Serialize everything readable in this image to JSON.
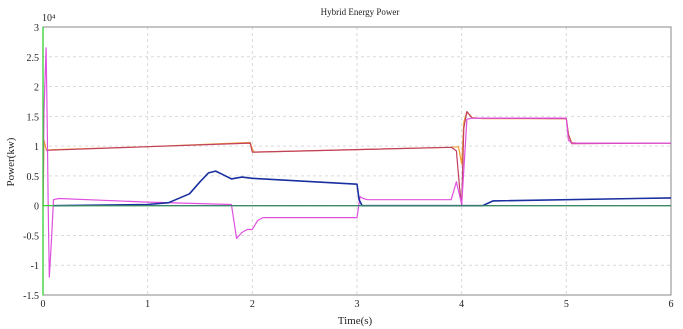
{
  "chart_data": {
    "type": "line",
    "title": "Hybrid Energy Power",
    "xlabel": "Time(s)",
    "ylabel": "Power(kw)",
    "y_multiplier": "10⁴",
    "xlim": [
      0,
      6
    ],
    "ylim": [
      -1.5,
      3
    ],
    "xticks": [
      "0",
      "1",
      "2",
      "3",
      "4",
      "5",
      "6"
    ],
    "yticks": [
      "-1.5",
      "-1",
      "-0.5",
      "0",
      "0.5",
      "1",
      "1.5",
      "2",
      "2.5",
      "3"
    ],
    "grid": true,
    "series": [
      {
        "color": "#f0a030",
        "x": [
          0,
          0.01,
          0.03,
          0.05,
          0.08,
          1.0,
          1.98,
          2.0,
          2.02,
          3.9,
          3.97,
          4.0,
          4.02,
          4.05,
          4.1,
          4.2,
          5.0,
          5.02,
          5.05,
          5.1,
          6.0
        ],
        "y": [
          0,
          1.1,
          0.95,
          0.93,
          0.94,
          0.99,
          1.06,
          0.95,
          0.9,
          0.98,
          0.99,
          0.7,
          1.4,
          1.58,
          1.48,
          1.46,
          1.46,
          1.2,
          1.06,
          1.05,
          1.05
        ]
      },
      {
        "color": "#c04060",
        "x": [
          0.03,
          1.0,
          1.98,
          2.0,
          2.02,
          3.9,
          3.95,
          3.98,
          4.0,
          4.02,
          4.05,
          4.1,
          5.0,
          5.02,
          5.05,
          6.0
        ],
        "y": [
          0.93,
          0.99,
          1.05,
          0.9,
          0.9,
          0.98,
          0.92,
          0.3,
          0.02,
          1.3,
          1.58,
          1.47,
          1.46,
          1.2,
          1.04,
          1.05
        ]
      },
      {
        "color": "#e050e0",
        "x": [
          0,
          0.01,
          0.03,
          0.04,
          0.05,
          0.06,
          0.08,
          0.1,
          0.15,
          1.0,
          1.8,
          1.85,
          1.9,
          1.95,
          2.0,
          2.05,
          2.1,
          3.0,
          3.03,
          3.06,
          3.1,
          3.9,
          3.95,
          4.0,
          4.05,
          4.1,
          5.0,
          5.02,
          5.05,
          6.0
        ],
        "y": [
          0,
          1.6,
          2.65,
          1.4,
          0.0,
          -1.2,
          -0.6,
          0.1,
          0.12,
          0.06,
          0.02,
          -0.55,
          -0.45,
          -0.4,
          -0.4,
          -0.25,
          -0.2,
          -0.2,
          0.15,
          0.12,
          0.1,
          0.1,
          0.4,
          0.02,
          1.45,
          1.47,
          1.47,
          1.1,
          1.05,
          1.05
        ]
      },
      {
        "color": "#1a2fa0",
        "x": [
          0.1,
          1.0,
          1.2,
          1.4,
          1.5,
          1.58,
          1.65,
          1.72,
          1.8,
          1.9,
          2.0,
          3.0,
          3.02,
          3.05,
          4.2,
          4.3,
          6.0
        ],
        "y": [
          0.0,
          0.02,
          0.05,
          0.2,
          0.4,
          0.55,
          0.58,
          0.52,
          0.45,
          0.48,
          0.46,
          0.36,
          0.1,
          0.0,
          0.0,
          0.08,
          0.13
        ]
      },
      {
        "color": "#22cc22",
        "x": [
          0.0,
          0.0,
          0.0,
          0.02,
          6.0
        ],
        "y": [
          3.0,
          -1.5,
          0.0,
          0.0,
          0.0
        ]
      },
      {
        "color": "#3a7a70",
        "x": [
          0.1,
          3.0,
          6.0
        ],
        "y": [
          0.0,
          0.0,
          0.0
        ]
      }
    ]
  }
}
